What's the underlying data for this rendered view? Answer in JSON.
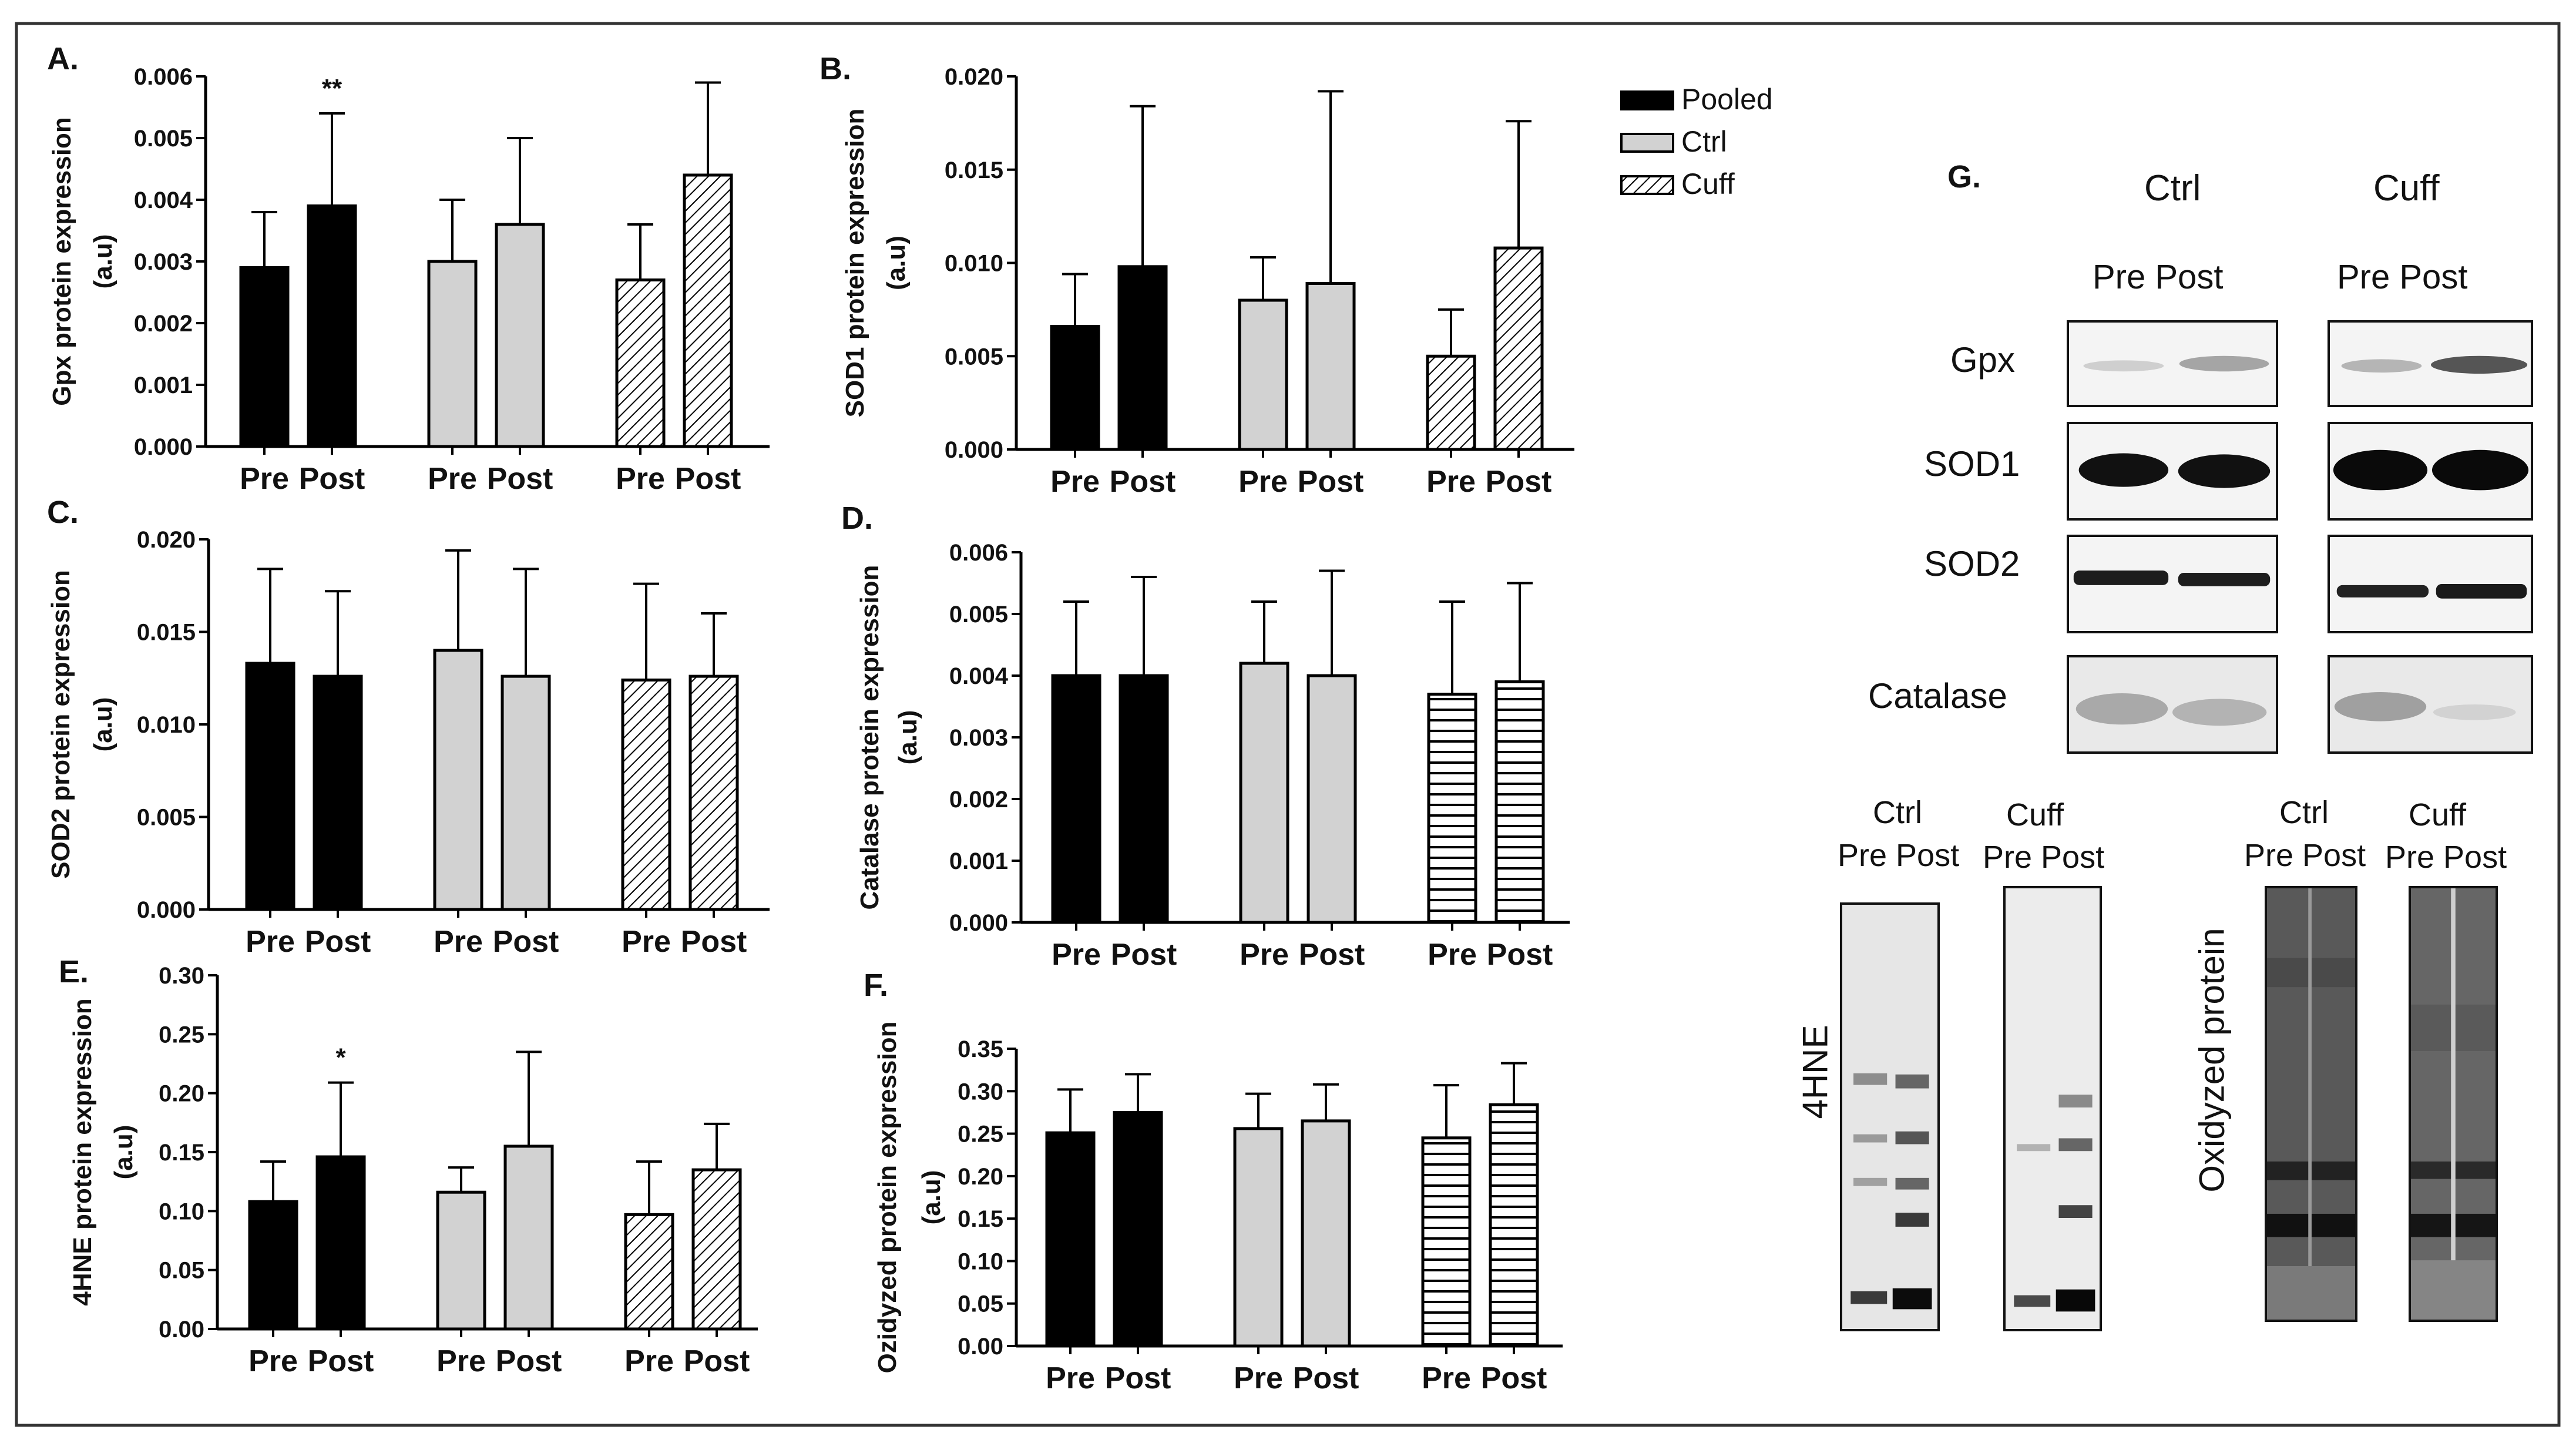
{
  "legend": [
    {
      "label": "Pooled",
      "fill": "solid-black"
    },
    {
      "label": "Ctrl",
      "fill": "light-gray"
    },
    {
      "label": "Cuff",
      "fill": "diagonal-hatch"
    }
  ],
  "colors": {
    "pooled": "#000000",
    "ctrl": "#d2d2d2",
    "stroke": "#000000"
  },
  "chart_data": [
    {
      "type": "bar",
      "panel_label": "A.",
      "ylabel": "Gpx protein expression (a.u)",
      "ylim": [
        0,
        0.006
      ],
      "yticks": [
        "0.000",
        "0.001",
        "0.002",
        "0.003",
        "0.004",
        "0.005",
        "0.006"
      ],
      "categories": [
        "Pre",
        "Post",
        "Pre",
        "Post",
        "Pre",
        "Post"
      ],
      "groups": [
        "Pooled",
        "Pooled",
        "Ctrl",
        "Ctrl",
        "Cuff",
        "Cuff"
      ],
      "values": [
        0.0029,
        0.0039,
        0.003,
        0.0036,
        0.0027,
        0.0044
      ],
      "errors": [
        0.0009,
        0.0015,
        0.001,
        0.0014,
        0.0009,
        0.0015
      ],
      "annotations": [
        {
          "index": 1,
          "text": "**"
        }
      ],
      "cuff_pattern": "diagonal"
    },
    {
      "type": "bar",
      "panel_label": "B.",
      "ylabel": "SOD1 protein expression (a.u)",
      "ylim": [
        0,
        0.02
      ],
      "yticks": [
        "0.000",
        "0.005",
        "0.010",
        "0.015",
        "0.020"
      ],
      "categories": [
        "Pre",
        "Post",
        "Pre",
        "Post",
        "Pre",
        "Post"
      ],
      "groups": [
        "Pooled",
        "Pooled",
        "Ctrl",
        "Ctrl",
        "Cuff",
        "Cuff"
      ],
      "values": [
        0.0066,
        0.0098,
        0.008,
        0.0089,
        0.005,
        0.0108
      ],
      "errors": [
        0.0028,
        0.0086,
        0.0023,
        0.0103,
        0.0025,
        0.0068
      ],
      "annotations": [],
      "cuff_pattern": "diagonal"
    },
    {
      "type": "bar",
      "panel_label": "C.",
      "ylabel": "SOD2 protein expression (a.u)",
      "ylim": [
        0,
        0.02
      ],
      "yticks": [
        "0.000",
        "0.005",
        "0.010",
        "0.015",
        "0.020"
      ],
      "categories": [
        "Pre",
        "Post",
        "Pre",
        "Post",
        "Pre",
        "Post"
      ],
      "groups": [
        "Pooled",
        "Pooled",
        "Ctrl",
        "Ctrl",
        "Cuff",
        "Cuff"
      ],
      "values": [
        0.0133,
        0.0126,
        0.014,
        0.0126,
        0.0124,
        0.0126
      ],
      "errors": [
        0.0051,
        0.0046,
        0.0054,
        0.0058,
        0.0052,
        0.0034
      ],
      "annotations": [],
      "cuff_pattern": "diagonal"
    },
    {
      "type": "bar",
      "panel_label": "D.",
      "ylabel": "Catalase protein expression (a.u)",
      "ylim": [
        0,
        0.006
      ],
      "yticks": [
        "0.000",
        "0.001",
        "0.002",
        "0.003",
        "0.004",
        "0.005",
        "0.006"
      ],
      "categories": [
        "Pre",
        "Post",
        "Pre",
        "Post",
        "Pre",
        "Post"
      ],
      "groups": [
        "Pooled",
        "Pooled",
        "Ctrl",
        "Ctrl",
        "Cuff",
        "Cuff"
      ],
      "values": [
        0.004,
        0.004,
        0.0042,
        0.004,
        0.0037,
        0.0039
      ],
      "errors": [
        0.0012,
        0.0016,
        0.001,
        0.0017,
        0.0015,
        0.0016
      ],
      "annotations": [],
      "cuff_pattern": "horizontal"
    },
    {
      "type": "bar",
      "panel_label": "E.",
      "ylabel": "4HNE protein expression (a.u)",
      "ylim": [
        0,
        0.3
      ],
      "yticks": [
        "0.00",
        "0.05",
        "0.10",
        "0.15",
        "0.20",
        "0.25",
        "0.30"
      ],
      "categories": [
        "Pre",
        "Post",
        "Pre",
        "Post",
        "Pre",
        "Post"
      ],
      "groups": [
        "Pooled",
        "Pooled",
        "Ctrl",
        "Ctrl",
        "Cuff",
        "Cuff"
      ],
      "values": [
        0.108,
        0.146,
        0.116,
        0.155,
        0.097,
        0.135
      ],
      "errors": [
        0.034,
        0.063,
        0.021,
        0.08,
        0.045,
        0.039
      ],
      "annotations": [
        {
          "index": 1,
          "text": "*"
        }
      ],
      "cuff_pattern": "diagonal"
    },
    {
      "type": "bar",
      "panel_label": "F.",
      "ylabel": "Ozidyzed protein expression (a.u)",
      "ylim": [
        0,
        0.35
      ],
      "yticks": [
        "0.00",
        "0.05",
        "0.10",
        "0.15",
        "0.20",
        "0.25",
        "0.30",
        "0.35"
      ],
      "categories": [
        "Pre",
        "Post",
        "Pre",
        "Post",
        "Pre",
        "Post"
      ],
      "groups": [
        "Pooled",
        "Pooled",
        "Ctrl",
        "Ctrl",
        "Cuff",
        "Cuff"
      ],
      "values": [
        0.251,
        0.275,
        0.256,
        0.265,
        0.245,
        0.284
      ],
      "errors": [
        0.051,
        0.045,
        0.041,
        0.043,
        0.062,
        0.049
      ],
      "annotations": [],
      "cuff_pattern": "horizontal"
    }
  ],
  "western_blot": {
    "panel_label": "G.",
    "groups": [
      "Ctrl",
      "Cuff"
    ],
    "lanes_label": "Pre Post",
    "rows": [
      "Gpx",
      "SOD1",
      "SOD2",
      "Catalase"
    ],
    "lower_headers": [
      {
        "group": "Ctrl",
        "lanes": "Pre Post"
      },
      {
        "group": "Cuff",
        "lanes": "Pre Post"
      },
      {
        "group": "Ctrl",
        "lanes": "Pre Post"
      },
      {
        "group": "Cuff",
        "lanes": "Pre Post"
      }
    ],
    "lower_labels": [
      "4HNE",
      "Oxidyzed protein"
    ]
  }
}
